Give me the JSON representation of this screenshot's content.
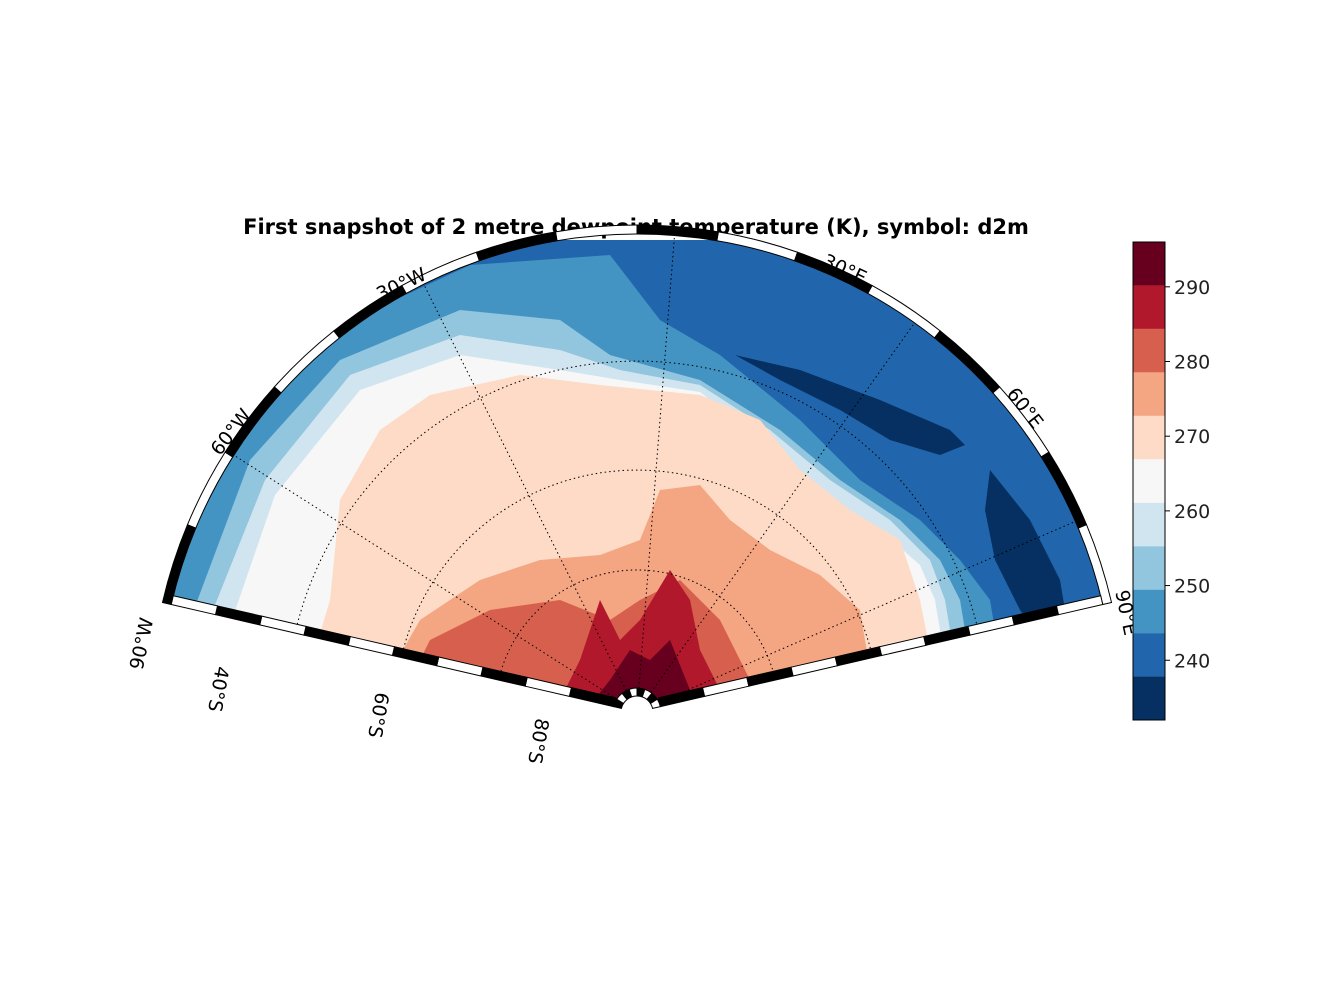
{
  "title": "First snapshot of 2 metre dewpoint temperature (K), symbol: d2m",
  "map": {
    "projection": "polar sector, Southern Hemisphere",
    "longitude_labels": [
      "90°W",
      "60°W",
      "30°W",
      "30°E",
      "60°E",
      "90°E"
    ],
    "latitude_labels": [
      "40°S",
      "60°S",
      "80°S"
    ],
    "gridlines": "dotted",
    "coastlines": true
  },
  "colorbar": {
    "ticks": [
      "240",
      "250",
      "260",
      "270",
      "280",
      "290"
    ],
    "levels": [
      230,
      235,
      240,
      245,
      250,
      255,
      260,
      265,
      270,
      275,
      280,
      285,
      290,
      296
    ],
    "colors": [
      "#053061",
      "#2166ac",
      "#4393c3",
      "#92c5de",
      "#d1e5f0",
      "#f7f7f7",
      "#fddbc7",
      "#f4a582",
      "#d6604d",
      "#b2182b",
      "#67001f"
    ]
  }
}
